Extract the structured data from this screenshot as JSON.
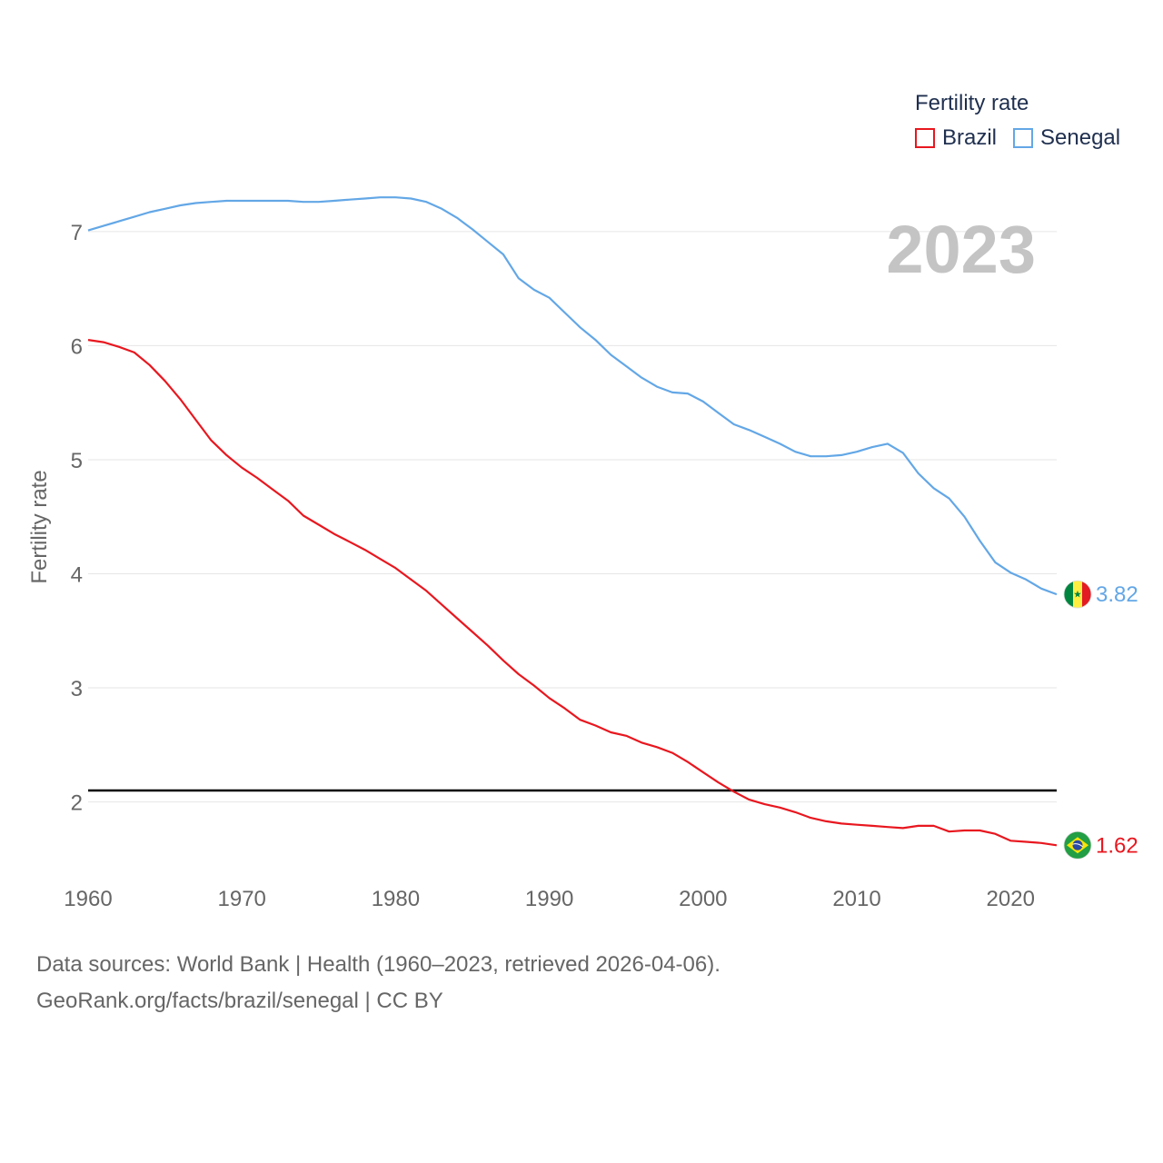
{
  "chart_data": {
    "type": "line",
    "ylabel": "Fertility rate",
    "xlabel": "",
    "xlim": [
      1960,
      2023
    ],
    "ylim": [
      1.2,
      7.7
    ],
    "x_ticks": [
      1960,
      1970,
      1980,
      1990,
      2000,
      2010,
      2020
    ],
    "y_ticks": [
      2,
      3,
      4,
      5,
      6,
      7
    ],
    "current_year": "2023",
    "reference_line": {
      "y": 2.1,
      "color": "#000000"
    },
    "legend": {
      "title": "Fertility rate",
      "position": "top-right"
    },
    "x": [
      1960,
      1961,
      1962,
      1963,
      1964,
      1965,
      1966,
      1967,
      1968,
      1969,
      1970,
      1971,
      1972,
      1973,
      1974,
      1975,
      1976,
      1977,
      1978,
      1979,
      1980,
      1981,
      1982,
      1983,
      1984,
      1985,
      1986,
      1987,
      1988,
      1989,
      1990,
      1991,
      1992,
      1993,
      1994,
      1995,
      1996,
      1997,
      1998,
      1999,
      2000,
      2001,
      2002,
      2003,
      2004,
      2005,
      2006,
      2007,
      2008,
      2009,
      2010,
      2011,
      2012,
      2013,
      2014,
      2015,
      2016,
      2017,
      2018,
      2019,
      2020,
      2021,
      2022,
      2023
    ],
    "series": [
      {
        "name": "Brazil",
        "color": "#e8171f",
        "end_label": "1.62",
        "flag_icon": "brazil-flag-icon",
        "values": [
          6.05,
          6.03,
          5.99,
          5.94,
          5.83,
          5.69,
          5.53,
          5.35,
          5.17,
          5.04,
          4.93,
          4.84,
          4.74,
          4.64,
          4.51,
          4.43,
          4.35,
          4.28,
          4.21,
          4.13,
          4.05,
          3.95,
          3.85,
          3.73,
          3.61,
          3.49,
          3.37,
          3.24,
          3.12,
          3.02,
          2.91,
          2.82,
          2.72,
          2.67,
          2.61,
          2.58,
          2.52,
          2.48,
          2.43,
          2.35,
          2.26,
          2.17,
          2.09,
          2.02,
          1.98,
          1.95,
          1.91,
          1.86,
          1.83,
          1.81,
          1.8,
          1.79,
          1.78,
          1.77,
          1.79,
          1.79,
          1.74,
          1.75,
          1.75,
          1.72,
          1.66,
          1.65,
          1.64,
          1.62
        ]
      },
      {
        "name": "Senegal",
        "color": "#63a7e6",
        "end_label": "3.82",
        "flag_icon": "senegal-flag-icon",
        "values": [
          7.01,
          7.05,
          7.09,
          7.13,
          7.17,
          7.2,
          7.23,
          7.25,
          7.26,
          7.27,
          7.27,
          7.27,
          7.27,
          7.27,
          7.26,
          7.26,
          7.27,
          7.28,
          7.29,
          7.3,
          7.3,
          7.29,
          7.26,
          7.2,
          7.12,
          7.02,
          6.91,
          6.8,
          6.59,
          6.49,
          6.42,
          6.29,
          6.16,
          6.05,
          5.92,
          5.82,
          5.72,
          5.64,
          5.59,
          5.58,
          5.51,
          5.41,
          5.31,
          5.26,
          5.2,
          5.14,
          5.07,
          5.03,
          5.03,
          5.04,
          5.07,
          5.11,
          5.14,
          5.06,
          4.88,
          4.75,
          4.66,
          4.5,
          4.29,
          4.1,
          4.01,
          3.95,
          3.87,
          3.82
        ]
      }
    ]
  },
  "source": {
    "line1": "Data sources: World Bank | Health (1960–2023, retrieved 2026-04-06).",
    "line2": "GeoRank.org/facts/brazil/senegal | CC BY"
  }
}
